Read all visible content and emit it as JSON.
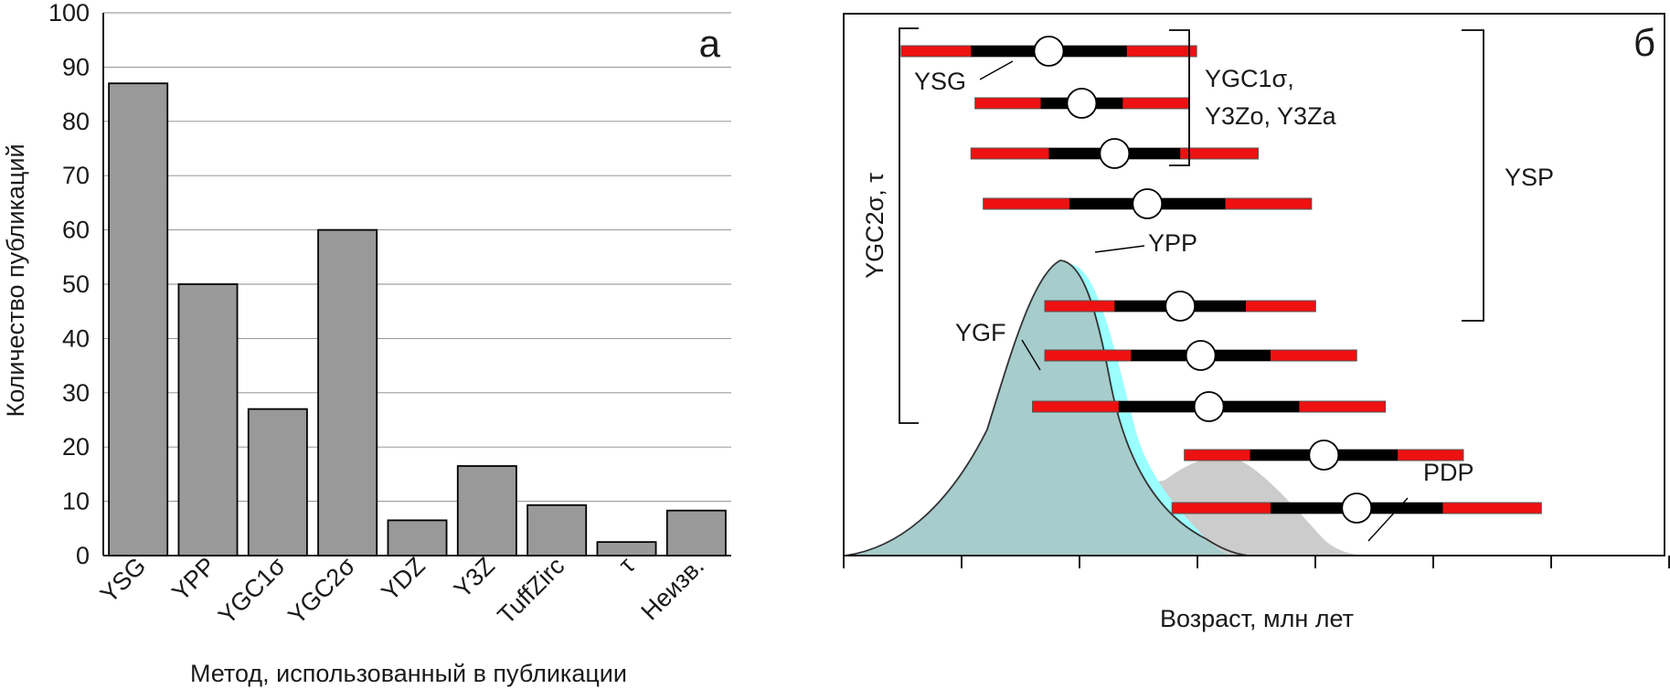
{
  "chart_data": [
    {
      "type": "bar",
      "panel_label": "а",
      "categories": [
        "YSG",
        "YPP",
        "YGC1σ",
        "YGC2σ",
        "YDZ",
        "Y3Z",
        "TuffZirc",
        "τ",
        "Неизв."
      ],
      "values": [
        87,
        50,
        27,
        60,
        6.5,
        16.5,
        9.3,
        2.5,
        8.3
      ],
      "ylabel": "Количество публикаций",
      "xlabel": "Метод, использованный в публикации",
      "ylim": [
        0,
        100
      ],
      "yticks": [
        "0",
        "10",
        "20",
        "30",
        "40",
        "50",
        "60",
        "70",
        "80",
        "90",
        "100"
      ],
      "grid": "horizontal",
      "colors": {
        "bar": "#999999",
        "edge": "#000000",
        "grid": "#888888"
      }
    },
    {
      "type": "schematic",
      "panel_label": "б",
      "xlabel": "Возраст, млн лет",
      "curves": [
        {
          "name": "PDP",
          "fill": "#cccccc"
        },
        {
          "name": "YGF",
          "fill": "#a6cccc"
        }
      ],
      "peak_label": "YPP",
      "ages": [
        {
          "center": 0.25,
          "e1": 0.095,
          "e2": 0.18
        },
        {
          "center": 0.29,
          "e1": 0.05,
          "e2": 0.13
        },
        {
          "center": 0.33,
          "e1": 0.08,
          "e2": 0.175
        },
        {
          "center": 0.37,
          "e1": 0.095,
          "e2": 0.2
        },
        {
          "center": 0.41,
          "e1": 0.08,
          "e2": 0.165
        },
        {
          "center": 0.435,
          "e1": 0.085,
          "e2": 0.19
        },
        {
          "center": 0.445,
          "e1": 0.11,
          "e2": 0.215
        },
        {
          "center": 0.585,
          "e1": 0.09,
          "e2": 0.17
        },
        {
          "center": 0.625,
          "e1": 0.105,
          "e2": 0.225
        }
      ],
      "labels": {
        "ysg": "YSG",
        "ygc1_line1": "YGC1σ,",
        "ygc1_line2": "Y3Zo, Y3Za",
        "ysp": "YSP",
        "ygc2": "YGC2σ, τ",
        "ypp": "YPP",
        "ygf": "YGF",
        "pdp": "PDP"
      },
      "colors": {
        "error_1s": "#000000",
        "error_2s": "#ee1111",
        "point": "#ffffff"
      }
    }
  ]
}
